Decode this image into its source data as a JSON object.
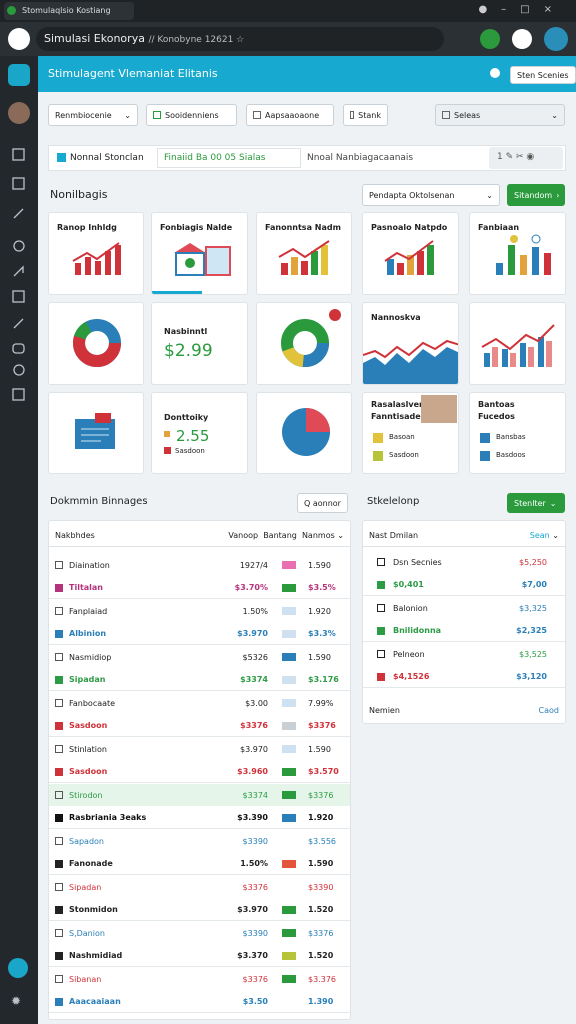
{
  "browser": {
    "tab_title": "Stomulaqlsio Kostiang",
    "address_title": "Simulasi Ekonorya",
    "address_url": "// Konobyne 12621 ☆"
  },
  "header": {
    "title": "Stimulagent Vlemaniat Elitanis",
    "button": "Sten Scenies"
  },
  "filters": [
    "Renmbiocenie",
    "Sooidenniens",
    "Aapsaaoaone",
    "Stank",
    "Seleas"
  ],
  "tabs": [
    "Nonnal Stonclan",
    "Finaiid Ba 00 05 Sialas",
    "Nnoal Nanbiagacaanais"
  ],
  "overview": {
    "title": "Nonilbagis",
    "dropdown": "Pendapta Oktolsenan",
    "button": "Sitandom",
    "cards": {
      "c0": "Ranop Inhldg",
      "c1": "Fonbiagis Nalde",
      "c2": "Fanonntsa Nadm",
      "c3": "Pasnoalo Natpdo",
      "c4": "Fanbiaan",
      "c6": "Nasbinntl",
      "c6v": "$2.99",
      "c8": "Nannoskva",
      "c11": "Donttoiky",
      "c11v": "2.55",
      "c11s": "Sasdoon",
      "c13": "Rasalaslvenn Fanntisaden",
      "c13a": "Basoan",
      "c13b": "Sasdoon",
      "c14": "Bantoas Fucedos",
      "c14a": "Bansbas",
      "c14b": "Basdoos"
    }
  },
  "table": {
    "title": "Dokmmin Binnages",
    "button": "Q aonnor",
    "header": "Nakbhdes",
    "columns": [
      "Vanoop",
      "Bantang",
      "Nanmos"
    ],
    "rows": [
      {
        "name": "Diaination",
        "a": "1927/4",
        "b": "1.590",
        "color": "#222"
      },
      {
        "name": "Tiltalan",
        "a": "$3.70%",
        "b": "$3.5%",
        "color": "#b4337a"
      },
      {
        "name": "Fanplaiad",
        "a": "1.50%",
        "b": "1.920",
        "color": "#222"
      },
      {
        "name": "Albinion",
        "a": "$3.970",
        "b": "$3.3%",
        "color": "#2a7fb8"
      },
      {
        "name": "Nasmidiop",
        "a": "$5326",
        "b": "1.590",
        "color": "#222"
      },
      {
        "name": "Sipadan",
        "a": "$3374",
        "b": "$3.176",
        "color": "#2d9b45"
      },
      {
        "name": "Fanbocaate",
        "a": "$3.00",
        "b": "7.99%",
        "color": "#222"
      },
      {
        "name": "Sasdoon",
        "a": "$3376",
        "b": "$3376",
        "color": "#d0323a"
      },
      {
        "name": "Stinlation",
        "a": "$3.970",
        "b": "1.590",
        "color": "#222"
      },
      {
        "name": "Sasdoon",
        "a": "$3.960",
        "b": "$3.570",
        "color": "#d0323a"
      },
      {
        "name": "Stirodon",
        "a": "$3374",
        "b": "$3376",
        "color": "#2d9b45",
        "highlight": true
      },
      {
        "name": "Rasbriania 3eaks",
        "a": "$3.390",
        "b": "1.920",
        "color": "#111"
      },
      {
        "name": "Sapadon",
        "a": "$3390",
        "b": "$3.556",
        "color": "#2a7fb8"
      },
      {
        "name": "Fanonade",
        "a": "1.50%",
        "b": "1.590",
        "color": "#222"
      },
      {
        "name": "Sipadan",
        "a": "$3376",
        "b": "$3390",
        "color": "#d0323a"
      },
      {
        "name": "Stonmidon",
        "a": "$3.970",
        "b": "1.520",
        "color": "#222"
      },
      {
        "name": "S,Danion",
        "a": "$3390",
        "b": "$3376",
        "color": "#2a7fb8"
      },
      {
        "name": "Nashmidiad",
        "a": "$3.370",
        "b": "1.520",
        "color": "#222"
      },
      {
        "name": "Sibanan",
        "a": "$3376",
        "b": "$3.376",
        "color": "#d0323a"
      },
      {
        "name": "Aaacaaiaan",
        "a": "$3.50",
        "b": "1.390",
        "color": "#2a7fb8"
      }
    ]
  },
  "panel": {
    "title": "Stkelelonp",
    "button": "Stenlter",
    "header": "Nast Dmilan",
    "header_right": "Sean",
    "rows": [
      {
        "name": "Dsn Secnies",
        "value": "$5,250",
        "color": "#222",
        "vcolor": "#d0323a"
      },
      {
        "name": "$0,401",
        "value": "$7,00",
        "color": "#2d9b45",
        "vcolor": "#2a7fb8"
      },
      {
        "name": "Balonion",
        "value": "$3,325",
        "color": "#222",
        "vcolor": "#2a7fb8"
      },
      {
        "name": "Bnilidonna",
        "value": "$2,325",
        "color": "#2d9b45",
        "vcolor": "#2a7fb8"
      },
      {
        "name": "Pelneon",
        "value": "$3,525",
        "color": "#222",
        "vcolor": "#2d9b45"
      },
      {
        "name": "$4,1526",
        "value": "$3,120",
        "color": "#d0323a",
        "vcolor": "#2a7fb8"
      }
    ],
    "footer": "Nemien",
    "footer_right": "Caod"
  }
}
